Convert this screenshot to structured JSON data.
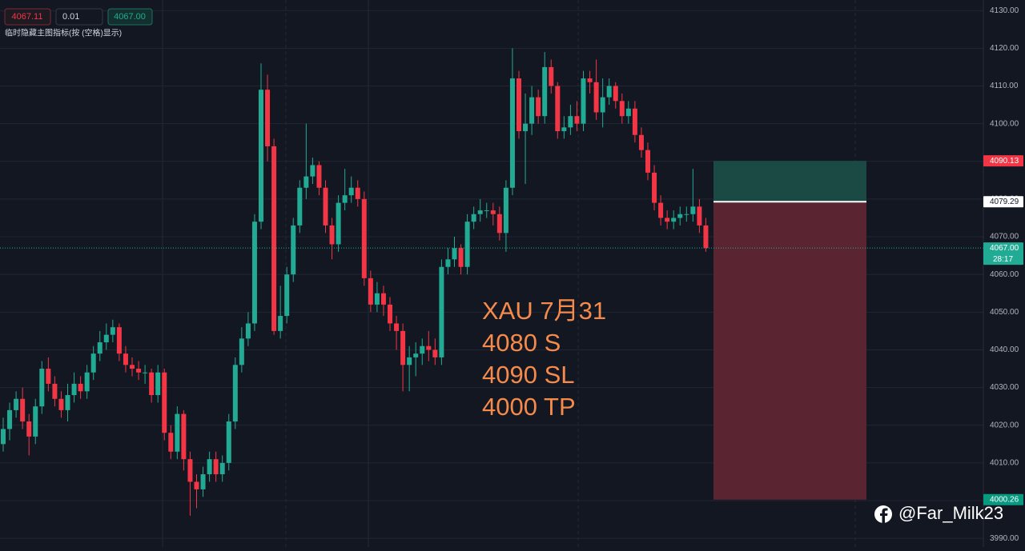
{
  "chart_data": {
    "type": "candlestick",
    "open": [
      4015,
      4019,
      4024,
      4027,
      4021,
      4017,
      4025,
      4035,
      4031,
      4027,
      4024,
      4028,
      4031,
      4029,
      4034,
      4039,
      4042,
      4044,
      4046,
      4039,
      4036,
      4035,
      4034,
      4034,
      4028,
      4034,
      4018,
      4013,
      4023,
      4011,
      4005,
      4003,
      4007,
      4011,
      4007,
      4010,
      4021,
      4036,
      4043,
      4047,
      4074,
      4109,
      4094,
      4045,
      4049,
      4060,
      4073,
      4083,
      4086,
      4089,
      4083,
      4073,
      4068,
      4079,
      4081,
      4083,
      4080,
      4059,
      4052,
      4055,
      4052,
      4047,
      4045,
      4036,
      4038,
      4039,
      4041,
      4040,
      4038,
      4062,
      4064,
      4067,
      4062,
      4074,
      4076,
      4077,
      4077,
      4076,
      4071,
      4083,
      4112,
      4098,
      4100,
      4107,
      4102,
      4115,
      4110,
      4098,
      4099,
      4102,
      4100,
      4112,
      4111,
      4103,
      4107,
      4110,
      4106,
      4102,
      4104,
      4097,
      4093,
      4087,
      4079,
      4075,
      4074,
      4075,
      4076,
      4076,
      4078,
      4073
    ],
    "high": [
      4022,
      4026,
      4029,
      4030,
      4023,
      4027,
      4037,
      4038,
      4033,
      4029,
      4031,
      4034,
      4033,
      4036,
      4041,
      4045,
      4047,
      4048,
      4047,
      4041,
      4038,
      4037,
      4036,
      4035,
      4036,
      4035,
      4020,
      4025,
      4024,
      4013,
      4007,
      4009,
      4013,
      4013,
      4012,
      4023,
      4038,
      4046,
      4050,
      4076,
      4116,
      4113,
      4096,
      4057,
      4062,
      4075,
      4085,
      4100,
      4091,
      4090,
      4085,
      4075,
      4081,
      4088,
      4086,
      4085,
      4082,
      4061,
      4058,
      4057,
      4054,
      4049,
      4047,
      4041,
      4042,
      4043,
      4045,
      4043,
      4064,
      4067,
      4070,
      4068,
      4076,
      4078,
      4080,
      4079,
      4079,
      4078,
      4085,
      4120,
      4114,
      4108,
      4110,
      4109,
      4119,
      4117,
      4111,
      4102,
      4105,
      4106,
      4114,
      4114,
      4117,
      4112,
      4112,
      4111,
      4108,
      4106,
      4106,
      4099,
      4095,
      4089,
      4081,
      4077,
      4077,
      4078,
      4078,
      4088,
      4080,
      4075
    ],
    "low": [
      4013,
      4016,
      4022,
      4019,
      4012,
      4015,
      4023,
      4029,
      4025,
      4022,
      4021,
      4026,
      4027,
      4027,
      4032,
      4037,
      4040,
      4042,
      4037,
      4034,
      4033,
      4032,
      4031,
      4026,
      4026,
      4016,
      4011,
      4011,
      4008,
      3996,
      3998,
      4001,
      4005,
      4005,
      4005,
      4008,
      4019,
      4034,
      4041,
      4045,
      4072,
      4090,
      4044,
      4043,
      4047,
      4058,
      4071,
      4080,
      4084,
      4081,
      4071,
      4064,
      4066,
      4077,
      4079,
      4078,
      4057,
      4050,
      4050,
      4049,
      4045,
      4040,
      4029,
      4029,
      4033,
      4036,
      4037,
      4036,
      4036,
      4060,
      4062,
      4060,
      4060,
      4072,
      4074,
      4075,
      4073,
      4069,
      4066,
      4081,
      4096,
      4084,
      4097,
      4100,
      4100,
      4108,
      4096,
      4096,
      4097,
      4098,
      4098,
      4108,
      4101,
      4099,
      4105,
      4104,
      4100,
      4100,
      4095,
      4091,
      4085,
      4077,
      4073,
      4072,
      4072,
      4073,
      4074,
      4074,
      4071,
      4066
    ],
    "close": [
      4019,
      4024,
      4027,
      4021,
      4017,
      4025,
      4035,
      4031,
      4027,
      4024,
      4028,
      4031,
      4029,
      4034,
      4039,
      4042,
      4044,
      4046,
      4039,
      4036,
      4035,
      4034,
      4034,
      4028,
      4034,
      4018,
      4013,
      4023,
      4011,
      4005,
      4003,
      4007,
      4011,
      4007,
      4010,
      4021,
      4036,
      4043,
      4047,
      4074,
      4109,
      4094,
      4045,
      4049,
      4060,
      4073,
      4083,
      4086,
      4089,
      4083,
      4073,
      4068,
      4079,
      4081,
      4083,
      4080,
      4059,
      4052,
      4055,
      4052,
      4047,
      4045,
      4036,
      4038,
      4039,
      4041,
      4040,
      4038,
      4062,
      4064,
      4067,
      4062,
      4074,
      4076,
      4077,
      4077,
      4076,
      4071,
      4083,
      4112,
      4098,
      4100,
      4107,
      4102,
      4115,
      4110,
      4098,
      4099,
      4102,
      4100,
      4112,
      4111,
      4103,
      4107,
      4110,
      4106,
      4102,
      4104,
      4097,
      4093,
      4087,
      4079,
      4075,
      4074,
      4075,
      4076,
      4076,
      4078,
      4073,
      4067
    ],
    "up_color": "#22ab94",
    "down_color": "#f23645",
    "ylim": [
      3987.7,
      4132.8
    ],
    "yticks": [
      {
        "value": 3990,
        "label": "3990.00"
      },
      {
        "value": 4000,
        "label": "4000.00"
      },
      {
        "value": 4010,
        "label": "4010.00"
      },
      {
        "value": 4020,
        "label": "4020.00"
      },
      {
        "value": 4030,
        "label": "4030.00"
      },
      {
        "value": 4040,
        "label": "4040.00"
      },
      {
        "value": 4050,
        "label": "4050.00"
      },
      {
        "value": 4060,
        "label": "4060.00"
      },
      {
        "value": 4070,
        "label": "4070.00"
      },
      {
        "value": 4080,
        "label": "4080.00"
      },
      {
        "value": 4090,
        "label": "4090.00"
      },
      {
        "value": 4100,
        "label": "4100.00"
      },
      {
        "value": 4110,
        "label": "4110.00"
      },
      {
        "value": 4120,
        "label": "4120.00"
      },
      {
        "value": 4130,
        "label": "4130.00"
      }
    ],
    "grid": true,
    "last_price": {
      "value": 4067,
      "label": "4067.00",
      "countdown": "28:17",
      "color": "#22ab94"
    },
    "position": {
      "stop": 4090.13,
      "entry": 4079.29,
      "target": 4000.26,
      "stop_color": "#f23645",
      "target_color": "#089981",
      "profit_fill": "#1b4a44",
      "loss_fill": "#5a2430"
    },
    "annotations": [
      "XAU  7月31",
      "4080 S",
      "4090 SL",
      "4000 TP"
    ],
    "watermark": "@Far_Milk23"
  },
  "toolbar": {
    "sell": "4067.11",
    "qty": "0.01",
    "buy": "4067.00",
    "hint": "临时隐藏主图指标(按 (空格)显示)"
  }
}
